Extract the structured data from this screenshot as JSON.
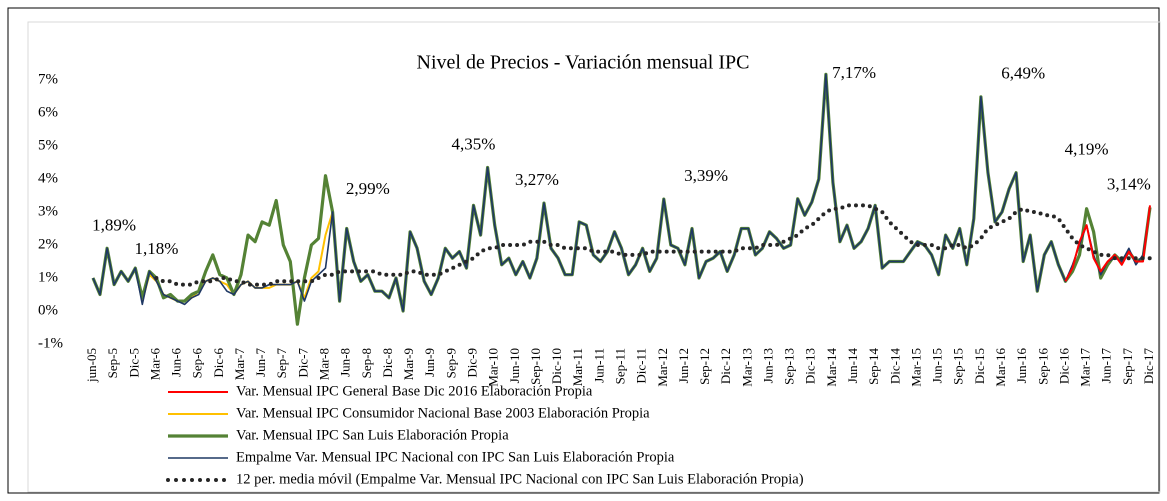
{
  "chart_data": {
    "type": "line",
    "title": "Nivel de Precios - Variación mensual IPC",
    "categories": [
      "jun-05",
      null,
      null,
      "Sep-5",
      null,
      null,
      "Dic-5",
      null,
      null,
      "Mar-6",
      null,
      null,
      "Jun-6",
      null,
      null,
      "Sep-6",
      null,
      null,
      "Dic-6",
      null,
      null,
      "Mar-7",
      null,
      null,
      "Jun-7",
      null,
      null,
      "Sep-7",
      null,
      null,
      "Dic-7",
      null,
      null,
      "Mar-8",
      null,
      null,
      "Jun-8",
      null,
      null,
      "Sep-8",
      null,
      null,
      "Dic-8",
      null,
      null,
      "Mar-9",
      null,
      null,
      "Jun-9",
      null,
      null,
      "Sep-9",
      null,
      null,
      "Dic-9",
      null,
      null,
      "Mar-10",
      null,
      null,
      "Jun-10",
      null,
      null,
      "Sep-10",
      null,
      null,
      "Dic-10",
      null,
      null,
      "Mar-11",
      null,
      null,
      "Jun-11",
      null,
      null,
      "Sep-11",
      null,
      null,
      "Dic-11",
      null,
      null,
      "Mar-12",
      null,
      null,
      "Jun-12",
      null,
      null,
      "Sep-12",
      null,
      null,
      "Dic-12",
      null,
      null,
      "Mar-13",
      null,
      null,
      "Jun-13",
      null,
      null,
      "Sep-13",
      null,
      null,
      "Dic-13",
      null,
      null,
      "Mar-14",
      null,
      null,
      "Jun-14",
      null,
      null,
      "Sep-14",
      null,
      null,
      "Dic-14",
      null,
      null,
      "Mar-15",
      null,
      null,
      "Jun-15",
      null,
      null,
      "Sep-15",
      null,
      null,
      "Dic-15",
      null,
      null,
      "Mar-16",
      null,
      null,
      "Jun-16",
      null,
      null,
      "Sep-16",
      null,
      null,
      "Dic-16",
      null,
      null,
      "Mar-17",
      null,
      null,
      "Jun-17",
      null,
      null,
      "Sep-17",
      null,
      null,
      "Dic-17"
    ],
    "ylim": [
      -1,
      7
    ],
    "yticks": [
      {
        "value": -1,
        "label": "-1%"
      },
      {
        "value": 0,
        "label": "0%"
      },
      {
        "value": 1,
        "label": "1%"
      },
      {
        "value": 2,
        "label": "2%"
      },
      {
        "value": 3,
        "label": "3%"
      },
      {
        "value": 4,
        "label": "4%"
      },
      {
        "value": 5,
        "label": "5%"
      },
      {
        "value": 6,
        "label": "6%"
      },
      {
        "value": 7,
        "label": "7%"
      }
    ],
    "series": [
      {
        "name": "Var. Mensual IPC General Base Dic 2016 Elaboración Propia",
        "color": "#ff0000",
        "values": [
          null,
          null,
          null,
          null,
          null,
          null,
          null,
          null,
          null,
          null,
          null,
          null,
          null,
          null,
          null,
          null,
          null,
          null,
          null,
          null,
          null,
          null,
          null,
          null,
          null,
          null,
          null,
          null,
          null,
          null,
          null,
          null,
          null,
          null,
          null,
          null,
          null,
          null,
          null,
          null,
          null,
          null,
          null,
          null,
          null,
          null,
          null,
          null,
          null,
          null,
          null,
          null,
          null,
          null,
          null,
          null,
          null,
          null,
          null,
          null,
          null,
          null,
          null,
          null,
          null,
          null,
          null,
          null,
          null,
          null,
          null,
          null,
          null,
          null,
          null,
          null,
          null,
          null,
          null,
          null,
          null,
          null,
          null,
          null,
          null,
          null,
          null,
          null,
          null,
          null,
          null,
          null,
          null,
          null,
          null,
          null,
          null,
          null,
          null,
          null,
          null,
          null,
          null,
          null,
          null,
          null,
          null,
          null,
          null,
          null,
          null,
          null,
          null,
          null,
          null,
          null,
          null,
          null,
          null,
          null,
          null,
          null,
          null,
          null,
          null,
          null,
          null,
          null,
          null,
          null,
          null,
          null,
          null,
          null,
          null,
          null,
          null,
          null,
          0.9,
          1.3,
          2.1,
          2.6,
          1.6,
          1.2,
          1.5,
          1.7,
          1.4,
          1.8,
          1.5,
          1.5,
          3.2
        ]
      },
      {
        "name": "Var. Mensual IPC Consumidor Nacional Base 2003 Elaboración Propia",
        "color": "#ffc000",
        "values": [
          1.0,
          0.5,
          1.9,
          0.8,
          1.2,
          0.9,
          1.3,
          0.3,
          1.1,
          0.9,
          0.5,
          0.4,
          0.3,
          0.3,
          0.4,
          0.6,
          0.9,
          1.0,
          0.9,
          0.8,
          0.5,
          0.8,
          0.9,
          0.7,
          0.7,
          0.7,
          0.8,
          0.8,
          0.8,
          0.9,
          0.4,
          1.0,
          1.2,
          2.3,
          3.0,
          null,
          null,
          null,
          null,
          null,
          null,
          null,
          null,
          null,
          null,
          null,
          null,
          null,
          null,
          null,
          null,
          null,
          null,
          null,
          null,
          null,
          null,
          null,
          null,
          null,
          null,
          null,
          null,
          null,
          null,
          null,
          null,
          null,
          null,
          null,
          null,
          null,
          null,
          null,
          null,
          null,
          null,
          null,
          null,
          null,
          null,
          null,
          null,
          null,
          null,
          null,
          null,
          null,
          null,
          null,
          null,
          null,
          null,
          null,
          null,
          null,
          null,
          null,
          null,
          null,
          null,
          null,
          null,
          null,
          null,
          null,
          null,
          null,
          null,
          null,
          null,
          null,
          null,
          null,
          null,
          null,
          null,
          null,
          null,
          null,
          null,
          null,
          null,
          null,
          null,
          null,
          null,
          null,
          null,
          null,
          null,
          null,
          null,
          null,
          null,
          null,
          null,
          null,
          null,
          null,
          null,
          null,
          null,
          null,
          null,
          null,
          null,
          null,
          null,
          null,
          null
        ]
      },
      {
        "name": "Var. Mensual IPC San Luis Elaboración Propia",
        "color": "#548235",
        "values": [
          1.0,
          0.5,
          1.9,
          0.8,
          1.2,
          0.9,
          1.3,
          0.4,
          1.2,
          1.0,
          0.4,
          0.5,
          0.3,
          0.3,
          0.5,
          0.6,
          1.2,
          1.7,
          1.1,
          1.0,
          0.5,
          1.1,
          2.3,
          2.1,
          2.7,
          2.6,
          3.35,
          2.0,
          1.5,
          -0.4,
          1.0,
          2.0,
          2.2,
          4.1,
          3.0,
          0.3,
          2.5,
          1.5,
          0.9,
          1.1,
          0.6,
          0.6,
          0.4,
          1.0,
          0.0,
          2.4,
          1.9,
          0.9,
          0.5,
          1.0,
          1.9,
          1.6,
          1.8,
          1.3,
          3.2,
          2.3,
          4.35,
          2.6,
          1.4,
          1.6,
          1.1,
          1.5,
          1.0,
          1.6,
          3.27,
          1.9,
          1.6,
          1.1,
          1.1,
          2.7,
          2.6,
          1.7,
          1.5,
          1.8,
          2.4,
          1.9,
          1.1,
          1.4,
          1.9,
          1.2,
          1.6,
          3.39,
          2.0,
          1.9,
          1.4,
          2.5,
          1.0,
          1.5,
          1.6,
          1.8,
          1.2,
          1.7,
          2.5,
          2.5,
          1.7,
          1.9,
          2.4,
          2.2,
          1.9,
          2.0,
          3.4,
          2.9,
          3.3,
          4.0,
          7.17,
          3.9,
          2.1,
          2.6,
          1.9,
          2.1,
          2.5,
          3.2,
          1.3,
          1.5,
          1.5,
          1.5,
          1.8,
          2.1,
          2.0,
          1.7,
          1.1,
          2.3,
          1.9,
          2.5,
          1.4,
          2.8,
          6.49,
          4.2,
          2.7,
          3.0,
          3.7,
          4.19,
          1.5,
          2.3,
          0.6,
          1.7,
          2.1,
          1.4,
          0.9,
          1.2,
          1.7,
          3.1,
          2.4,
          1.0,
          1.4,
          1.7,
          1.5,
          1.8,
          1.5,
          1.6,
          3.14
        ]
      },
      {
        "name": "Empalme Var. Mensual IPC Nacional con IPC San Luis Elaboración Propia",
        "color": "#1f3864",
        "values": [
          1.0,
          0.5,
          1.9,
          0.8,
          1.2,
          0.9,
          1.3,
          0.2,
          1.2,
          0.9,
          0.5,
          0.4,
          0.3,
          0.2,
          0.4,
          0.5,
          0.9,
          1.0,
          0.9,
          0.6,
          0.5,
          0.8,
          0.9,
          0.7,
          0.7,
          0.8,
          0.8,
          0.8,
          0.8,
          0.9,
          0.3,
          0.9,
          1.1,
          1.3,
          3.0,
          0.3,
          2.5,
          1.5,
          0.9,
          1.1,
          0.6,
          0.6,
          0.4,
          1.0,
          0.0,
          2.4,
          1.9,
          0.9,
          0.5,
          1.0,
          1.9,
          1.6,
          1.8,
          1.3,
          3.2,
          2.3,
          4.35,
          2.6,
          1.4,
          1.6,
          1.1,
          1.5,
          1.0,
          1.6,
          3.27,
          1.9,
          1.6,
          1.1,
          1.1,
          2.7,
          2.6,
          1.7,
          1.5,
          1.8,
          2.4,
          1.9,
          1.1,
          1.4,
          1.9,
          1.2,
          1.6,
          3.39,
          2.0,
          1.9,
          1.4,
          2.5,
          1.0,
          1.5,
          1.6,
          1.8,
          1.2,
          1.7,
          2.5,
          2.5,
          1.7,
          1.9,
          2.4,
          2.2,
          1.9,
          2.0,
          3.4,
          2.9,
          3.3,
          4.0,
          7.17,
          3.9,
          2.1,
          2.6,
          1.9,
          2.1,
          2.5,
          3.2,
          1.3,
          1.5,
          1.5,
          1.5,
          1.8,
          2.1,
          2.0,
          1.7,
          1.1,
          2.3,
          1.9,
          2.5,
          1.4,
          2.8,
          6.49,
          4.2,
          2.7,
          3.0,
          3.7,
          4.19,
          1.5,
          2.3,
          0.6,
          1.7,
          2.1,
          1.4,
          0.9,
          1.4,
          2.0,
          2.6,
          1.7,
          1.1,
          1.5,
          1.6,
          1.5,
          1.9,
          1.4,
          1.7,
          3.14
        ]
      },
      {
        "name": "12 per. media móvil (Empalme Var. Mensual IPC Nacional con IPC San Luis Elaboración Propia)",
        "color": "#262626",
        "dash": "dotted",
        "values": [
          null,
          null,
          null,
          null,
          null,
          null,
          null,
          null,
          null,
          1.0,
          0.9,
          0.9,
          0.8,
          0.8,
          0.8,
          0.9,
          0.9,
          0.9,
          1.0,
          1.0,
          0.9,
          0.9,
          0.8,
          0.8,
          0.8,
          0.8,
          0.9,
          0.9,
          0.9,
          0.9,
          0.9,
          0.9,
          1.0,
          1.1,
          1.1,
          1.2,
          1.2,
          1.2,
          1.2,
          1.2,
          1.2,
          1.1,
          1.1,
          1.1,
          1.1,
          1.2,
          1.2,
          1.1,
          1.1,
          1.1,
          1.2,
          1.3,
          1.4,
          1.5,
          1.6,
          1.8,
          1.9,
          1.9,
          2.0,
          2.0,
          2.0,
          2.0,
          2.1,
          2.1,
          2.1,
          2.0,
          2.0,
          1.9,
          1.9,
          1.9,
          1.9,
          1.8,
          1.8,
          1.8,
          1.8,
          1.7,
          1.7,
          1.7,
          1.7,
          1.8,
          1.8,
          1.8,
          1.8,
          1.8,
          1.8,
          1.8,
          1.8,
          1.8,
          1.8,
          1.8,
          1.8,
          1.8,
          1.9,
          1.9,
          1.9,
          2.0,
          2.0,
          2.0,
          2.1,
          2.2,
          2.3,
          2.5,
          2.6,
          2.8,
          3.0,
          3.1,
          3.1,
          3.2,
          3.2,
          3.2,
          3.2,
          3.1,
          3.0,
          2.7,
          2.5,
          2.3,
          2.1,
          2.0,
          2.0,
          2.0,
          1.9,
          1.9,
          2.0,
          2.0,
          1.9,
          2.0,
          2.2,
          2.5,
          2.6,
          2.7,
          2.8,
          3.0,
          3.1,
          3.0,
          3.0,
          2.9,
          2.9,
          2.8,
          2.5,
          2.2,
          2.0,
          1.9,
          1.8,
          1.7,
          1.7,
          1.6,
          1.6,
          1.6,
          1.6,
          1.6,
          1.6
        ]
      }
    ],
    "annotations": [
      {
        "text": "1,89%",
        "x": "Sep-5",
        "value": 1.89
      },
      {
        "text": "1,18%",
        "x": "Mar-6",
        "value": 1.18
      },
      {
        "text": "2,99%",
        "x": "Sep-8",
        "value": 2.99
      },
      {
        "text": "4,35%",
        "x": "Dic-9",
        "value": 4.35
      },
      {
        "text": "3,27%",
        "x": "Sep-10",
        "value": 3.27
      },
      {
        "text": "3,39%",
        "x": "Sep-12",
        "value": 3.39
      },
      {
        "text": "7,17%",
        "x": "Jun-14",
        "value": 7.17
      },
      {
        "text": "6,49%",
        "x": "Jun-16",
        "value": 6.49
      },
      {
        "text": "4,19%",
        "x": "Mar-17",
        "value": 4.19
      },
      {
        "text": "3,14%",
        "x": "Sep-17",
        "value": 3.14
      }
    ]
  }
}
